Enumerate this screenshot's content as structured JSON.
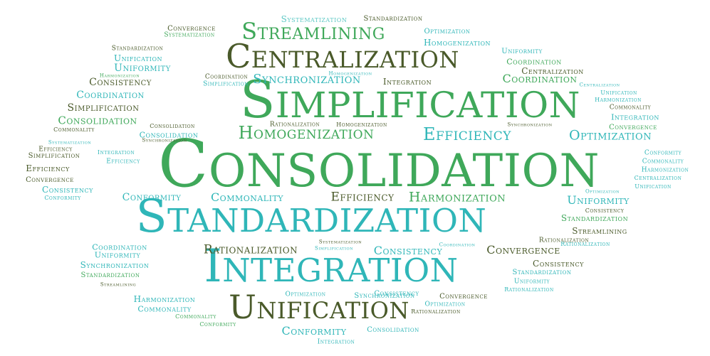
{
  "palette": {
    "dark_olive": "#4a5a2a",
    "green": "#3fa85a",
    "teal": "#2fb6b8",
    "light_teal": "#5cc8c4"
  },
  "words": [
    {
      "text": "Consolidation",
      "color": "green"
    },
    {
      "text": "Simplification",
      "color": "green"
    },
    {
      "text": "Standardization",
      "color": "teal"
    },
    {
      "text": "Integration",
      "color": "teal"
    },
    {
      "text": "Centralization",
      "color": "dark_olive"
    },
    {
      "text": "Unification",
      "color": "dark_olive"
    },
    {
      "text": "Streamlining",
      "color": "green"
    },
    {
      "text": "Homogenization",
      "color": "green"
    },
    {
      "text": "Efficiency",
      "color": "teal"
    },
    {
      "text": "Optimization",
      "color": "teal"
    },
    {
      "text": "Synchronization",
      "color": "teal"
    },
    {
      "text": "Coordination",
      "color": "green"
    },
    {
      "text": "Rationalization",
      "color": "dark_olive"
    },
    {
      "text": "Convergence",
      "color": "dark_olive"
    },
    {
      "text": "Consistency",
      "color": "teal"
    },
    {
      "text": "Harmonization",
      "color": "green"
    },
    {
      "text": "Efficiency",
      "color": "dark_olive"
    },
    {
      "text": "Commonality",
      "color": "teal"
    },
    {
      "text": "Conformity",
      "color": "teal"
    },
    {
      "text": "Uniformity",
      "color": "teal"
    },
    {
      "text": "Standardization",
      "color": "green"
    },
    {
      "text": "Streamlining",
      "color": "dark_olive"
    },
    {
      "text": "Conformity",
      "color": "teal"
    },
    {
      "text": "Systematization",
      "color": "light_teal"
    },
    {
      "text": "Standardization",
      "color": "dark_olive"
    },
    {
      "text": "Convergence",
      "color": "dark_olive"
    },
    {
      "text": "Systematization",
      "color": "green"
    },
    {
      "text": "Optimization",
      "color": "teal"
    },
    {
      "text": "Homogenization",
      "color": "teal"
    },
    {
      "text": "Standardization",
      "color": "dark_olive"
    },
    {
      "text": "Unification",
      "color": "teal"
    },
    {
      "text": "Uniformity",
      "color": "teal"
    },
    {
      "text": "Coordination",
      "color": "green"
    },
    {
      "text": "Uniformity",
      "color": "teal"
    },
    {
      "text": "Centralization",
      "color": "dark_olive"
    },
    {
      "text": "Consistency",
      "color": "dark_olive"
    },
    {
      "text": "Harmonization",
      "color": "green"
    },
    {
      "text": "Coordination",
      "color": "dark_olive"
    },
    {
      "text": "Simplification",
      "color": "teal"
    },
    {
      "text": "Homogenization",
      "color": "teal"
    },
    {
      "text": "Integration",
      "color": "dark_olive"
    },
    {
      "text": "Centralization",
      "color": "teal"
    },
    {
      "text": "Unification",
      "color": "teal"
    },
    {
      "text": "Harmonization",
      "color": "teal"
    },
    {
      "text": "Coordination",
      "color": "teal"
    },
    {
      "text": "Commonality",
      "color": "dark_olive"
    },
    {
      "text": "Simplification",
      "color": "dark_olive"
    },
    {
      "text": "Integration",
      "color": "teal"
    },
    {
      "text": "Consolidation",
      "color": "green"
    },
    {
      "text": "Convergence",
      "color": "green"
    },
    {
      "text": "Commonality",
      "color": "dark_olive"
    },
    {
      "text": "Consolidation",
      "color": "teal"
    },
    {
      "text": "Consolidation",
      "color": "dark_olive"
    },
    {
      "text": "Rationalization",
      "color": "dark_olive"
    },
    {
      "text": "Homogenization",
      "color": "dark_olive"
    },
    {
      "text": "Synchronization",
      "color": "dark_olive"
    },
    {
      "text": "Synchronization",
      "color": "dark_olive"
    },
    {
      "text": "Systematization",
      "color": "teal"
    },
    {
      "text": "Efficiency",
      "color": "dark_olive"
    },
    {
      "text": "Simplification",
      "color": "dark_olive"
    },
    {
      "text": "Integration",
      "color": "teal"
    },
    {
      "text": "Efficiency",
      "color": "teal"
    },
    {
      "text": "Efficiency",
      "color": "dark_olive"
    },
    {
      "text": "Convergence",
      "color": "dark_olive"
    },
    {
      "text": "Consistency",
      "color": "teal"
    },
    {
      "text": "Conformity",
      "color": "teal"
    },
    {
      "text": "Conformity",
      "color": "teal"
    },
    {
      "text": "Commonality",
      "color": "teal"
    },
    {
      "text": "Harmonization",
      "color": "teal"
    },
    {
      "text": "Centralization",
      "color": "teal"
    },
    {
      "text": "Unification",
      "color": "teal"
    },
    {
      "text": "Optimization",
      "color": "teal"
    },
    {
      "text": "Consistency",
      "color": "dark_olive"
    },
    {
      "text": "Coordination",
      "color": "teal"
    },
    {
      "text": "Uniformity",
      "color": "teal"
    },
    {
      "text": "Synchronization",
      "color": "teal"
    },
    {
      "text": "Standardization",
      "color": "green"
    },
    {
      "text": "Streamlining",
      "color": "dark_olive"
    },
    {
      "text": "Systematization",
      "color": "dark_olive"
    },
    {
      "text": "Simplification",
      "color": "teal"
    },
    {
      "text": "Streamlining",
      "color": "dark_olive"
    },
    {
      "text": "Uniformity",
      "color": "dark_olive"
    },
    {
      "text": "Coordination",
      "color": "teal"
    },
    {
      "text": "Rationalization",
      "color": "teal"
    },
    {
      "text": "Rationalization",
      "color": "dark_olive"
    },
    {
      "text": "Consistency",
      "color": "dark_olive"
    },
    {
      "text": "Standardization",
      "color": "teal"
    },
    {
      "text": "Uniformity",
      "color": "teal"
    },
    {
      "text": "Rationalization",
      "color": "teal"
    },
    {
      "text": "Consistency",
      "color": "teal"
    },
    {
      "text": "Convergence",
      "color": "dark_olive"
    },
    {
      "text": "Optimization",
      "color": "teal"
    },
    {
      "text": "Rationalization",
      "color": "dark_olive"
    },
    {
      "text": "Harmonization",
      "color": "teal"
    },
    {
      "text": "Commonality",
      "color": "teal"
    },
    {
      "text": "Commonality",
      "color": "green"
    },
    {
      "text": "Conformity",
      "color": "green"
    },
    {
      "text": "Optimization",
      "color": "teal"
    },
    {
      "text": "Synchronization",
      "color": "teal"
    },
    {
      "text": "Harmonization",
      "color": "teal"
    },
    {
      "text": "Centralization",
      "color": "dark_olive"
    },
    {
      "text": "Consolidation",
      "color": "teal"
    },
    {
      "text": "Convergence",
      "color": "teal"
    },
    {
      "text": "Streamlining",
      "color": "dark_olive"
    },
    {
      "text": "Conformity",
      "color": "teal"
    },
    {
      "text": "Integration",
      "color": "teal"
    },
    {
      "text": "Streamlining",
      "color": "teal"
    }
  ]
}
